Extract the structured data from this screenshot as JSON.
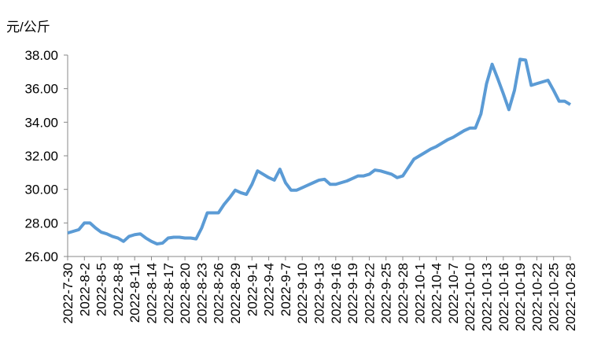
{
  "chart_data": {
    "type": "line",
    "y_label": "元/公斤",
    "categories": [
      "2022-7-30",
      null,
      null,
      "2022-8-2",
      null,
      null,
      "2022-8-5",
      null,
      null,
      "2022-8-8",
      null,
      null,
      "2022-8-11",
      null,
      null,
      "2022-8-14",
      null,
      null,
      "2022-8-17",
      null,
      null,
      "2022-8-20",
      null,
      null,
      "2022-8-23",
      null,
      null,
      "2022-8-26",
      null,
      null,
      "2022-8-29",
      null,
      null,
      "2022-9-1",
      null,
      null,
      "2022-9-4",
      null,
      null,
      "2022-9-7",
      null,
      null,
      "2022-9-10",
      null,
      null,
      "2022-9-13",
      null,
      null,
      "2022-9-16",
      null,
      null,
      "2022-9-19",
      null,
      null,
      "2022-9-22",
      null,
      null,
      "2022-9-25",
      null,
      null,
      "2022-9-28",
      null,
      null,
      "2022-10-1",
      null,
      null,
      "2022-10-4",
      null,
      null,
      "2022-10-7",
      null,
      null,
      "2022-10-10",
      null,
      null,
      "2022-10-13",
      null,
      null,
      "2022-10-16",
      null,
      null,
      "2022-10-19",
      null,
      null,
      "2022-10-22",
      null,
      null,
      "2022-10-25",
      null,
      null,
      "2022-10-28"
    ],
    "values": [
      27.4,
      27.5,
      27.6,
      28.0,
      28.0,
      27.7,
      27.45,
      27.35,
      27.2,
      27.1,
      26.9,
      27.2,
      27.3,
      27.35,
      27.1,
      26.9,
      26.75,
      26.8,
      27.1,
      27.15,
      27.15,
      27.1,
      27.1,
      27.05,
      27.7,
      28.6,
      28.6,
      28.6,
      29.1,
      29.5,
      29.95,
      29.8,
      29.7,
      30.3,
      31.1,
      30.9,
      30.7,
      30.55,
      31.2,
      30.4,
      29.95,
      29.95,
      30.1,
      30.25,
      30.4,
      30.55,
      30.6,
      30.3,
      30.3,
      30.4,
      30.5,
      30.65,
      30.8,
      30.8,
      30.9,
      31.15,
      31.1,
      31.0,
      30.9,
      30.7,
      30.8,
      31.3,
      31.8,
      32.0,
      32.2,
      32.4,
      32.55,
      32.75,
      32.95,
      33.1,
      33.3,
      33.5,
      33.65,
      33.65,
      34.5,
      36.3,
      37.45,
      36.6,
      35.7,
      34.75,
      35.9,
      37.75,
      37.7,
      36.2,
      36.3,
      36.4,
      36.5,
      35.9,
      35.25,
      35.25,
      35.05
    ],
    "color": "#5b9bd5",
    "ylim": [
      26,
      38
    ],
    "yticks": [
      {
        "value": 26,
        "label": "26.00"
      },
      {
        "value": 28,
        "label": "28.00"
      },
      {
        "value": 30,
        "label": "30.00"
      },
      {
        "value": 32,
        "label": "32.00"
      },
      {
        "value": 34,
        "label": "34.00"
      },
      {
        "value": 36,
        "label": "36.00"
      },
      {
        "value": 38,
        "label": "38.00"
      }
    ]
  }
}
